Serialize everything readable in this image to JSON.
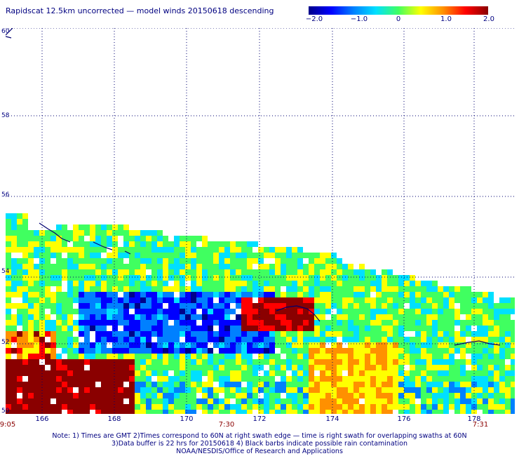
{
  "header": {
    "title": "Rapidscat 12.5km uncorrected — model winds 20150618 descending"
  },
  "colorbar": {
    "labels": [
      "−2.0",
      "−1.0",
      "0",
      "1.0",
      "2.0"
    ],
    "range": [
      -2.0,
      2.0
    ],
    "colors": [
      "#00008a",
      "#0000ff",
      "#0080ff",
      "#00e0ff",
      "#40ff60",
      "#ffff00",
      "#ff9000",
      "#ff0000",
      "#8a0000"
    ]
  },
  "map": {
    "lat_labels": [
      "60",
      "58",
      "56",
      "54",
      "52",
      "50"
    ],
    "lon_labels": [
      "166",
      "168",
      "170",
      "172",
      "174",
      "176",
      "178"
    ],
    "lat_range": [
      50,
      60
    ],
    "lon_range": [
      165,
      179
    ],
    "times": [
      "9:05",
      "7:30",
      "7:31"
    ]
  },
  "notes": [
    "Note: 1) Times are GMT 2)Times correspond to 60N at right swath edge — time is right swath for overlapping swaths at 60N",
    "3)Data buffer is 22 hrs for 20150618 4) Black barbs indicate possible rain contamination",
    "NOAA/NESDIS/Office of Research and Applications"
  ]
}
